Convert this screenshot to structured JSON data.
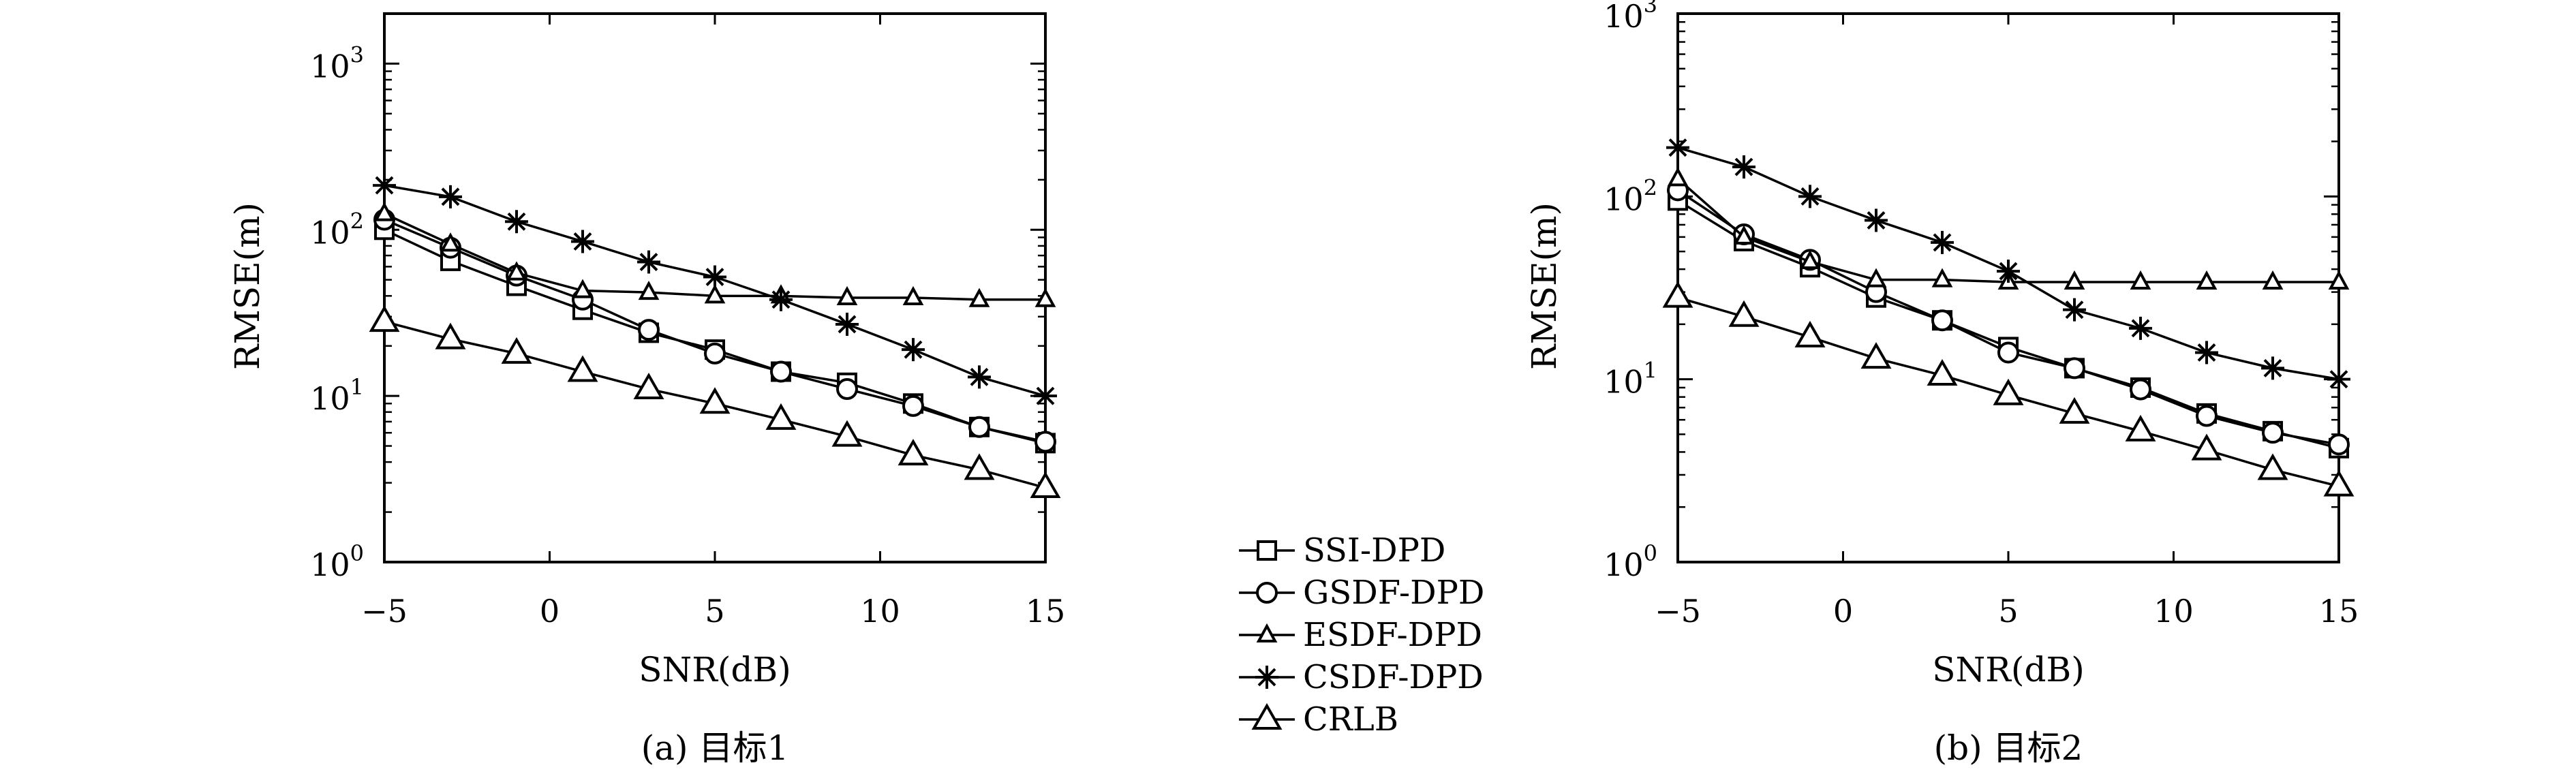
{
  "chart_data": [
    {
      "type": "line",
      "caption": "(a) 目标1",
      "xlabel": "SNR(dB)",
      "ylabel": "RMSE(m)",
      "xlim": [
        -5,
        15
      ],
      "ylim": [
        1,
        2000
      ],
      "yscale": "log",
      "x_ticks": [
        "−5",
        "0",
        "5",
        "10",
        "15"
      ],
      "y_ticks": [
        {
          "base": "10",
          "exp": "0"
        },
        {
          "base": "10",
          "exp": "1"
        },
        {
          "base": "10",
          "exp": "2"
        },
        {
          "base": "10",
          "exp": "3"
        }
      ],
      "grid": false,
      "x": [
        -5,
        -3,
        -1,
        1,
        3,
        5,
        7,
        9,
        11,
        13,
        15
      ],
      "series": [
        {
          "name": "SSI-DPD",
          "marker": "square",
          "values": [
            100,
            65,
            46,
            33,
            24,
            19,
            14,
            12,
            9,
            6.5,
            5.2
          ]
        },
        {
          "name": "GSDF-DPD",
          "marker": "circle",
          "values": [
            115,
            78,
            53,
            38,
            25,
            18,
            14,
            11,
            8.7,
            6.5,
            5.3
          ]
        },
        {
          "name": "ESDF-DPD",
          "marker": "triangle-small",
          "values": [
            125,
            82,
            55,
            43,
            42,
            40,
            40,
            39,
            39,
            38,
            38
          ]
        },
        {
          "name": "CSDF-DPD",
          "marker": "star",
          "values": [
            185,
            158,
            112,
            85,
            64,
            52,
            38,
            27,
            19,
            13,
            10
          ]
        },
        {
          "name": "CRLB",
          "marker": "triangle",
          "values": [
            28,
            22,
            18,
            14,
            11,
            9,
            7.2,
            5.7,
            4.4,
            3.6,
            2.8
          ]
        }
      ]
    },
    {
      "type": "line",
      "caption": "(b) 目标2",
      "xlabel": "SNR(dB)",
      "ylabel": "RMSE(m)",
      "xlim": [
        -5,
        15
      ],
      "ylim": [
        1,
        1000
      ],
      "yscale": "log",
      "x_ticks": [
        "−5",
        "0",
        "5",
        "10",
        "15"
      ],
      "y_ticks": [
        {
          "base": "10",
          "exp": "0"
        },
        {
          "base": "10",
          "exp": "1"
        },
        {
          "base": "10",
          "exp": "2"
        },
        {
          "base": "10",
          "exp": "3"
        }
      ],
      "grid": false,
      "x": [
        -5,
        -3,
        -1,
        1,
        3,
        5,
        7,
        9,
        11,
        13,
        15
      ],
      "series": [
        {
          "name": "SSI-DPD",
          "marker": "square",
          "values": [
            95,
            57,
            41,
            28,
            21,
            15,
            11.5,
            9,
            6.5,
            5.2,
            4.2
          ]
        },
        {
          "name": "GSDF-DPD",
          "marker": "circle",
          "values": [
            108,
            62,
            45,
            30,
            21,
            14,
            11.5,
            8.8,
            6.3,
            5.1,
            4.4
          ]
        },
        {
          "name": "ESDF-DPD",
          "marker": "triangle-small",
          "values": [
            125,
            60,
            44,
            35,
            35,
            34,
            34,
            34,
            34,
            34,
            34
          ]
        },
        {
          "name": "CSDF-DPD",
          "marker": "star",
          "values": [
            185,
            145,
            100,
            74,
            56,
            39,
            24,
            19,
            14,
            11.5,
            10
          ]
        },
        {
          "name": "CRLB",
          "marker": "triangle",
          "values": [
            28,
            22,
            17,
            13,
            10.5,
            8.2,
            6.5,
            5.2,
            4.1,
            3.2,
            2.6
          ]
        }
      ]
    }
  ],
  "legend": {
    "placement": "center-bottom",
    "entries": [
      {
        "name": "SSI-DPD",
        "marker": "square"
      },
      {
        "name": "GSDF-DPD",
        "marker": "circle"
      },
      {
        "name": "ESDF-DPD",
        "marker": "triangle-small"
      },
      {
        "name": "CSDF-DPD",
        "marker": "star"
      },
      {
        "name": "CRLB",
        "marker": "triangle"
      }
    ]
  }
}
